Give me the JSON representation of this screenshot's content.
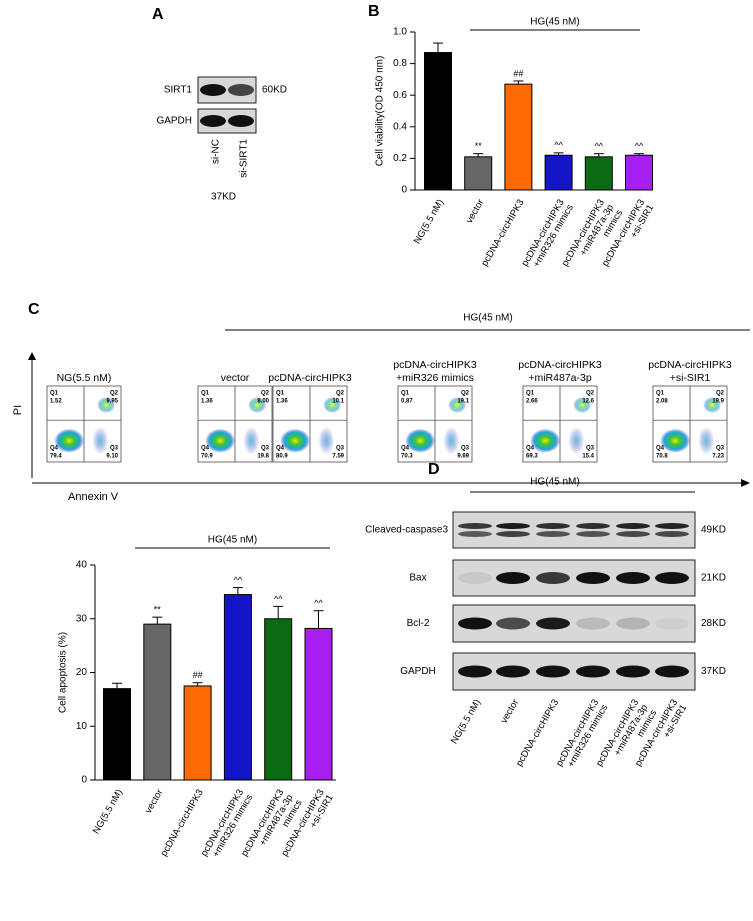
{
  "panel_labels": [
    "A",
    "B",
    "C",
    "D"
  ],
  "panel_a": {
    "rows": [
      {
        "label": "SIRT1",
        "size": "60KD"
      },
      {
        "label": "GAPDH"
      }
    ],
    "lanes": [
      "si-NC",
      "si-SIRT1"
    ],
    "note": "37KD"
  },
  "chart_data": [
    {
      "type": "bar",
      "group_label": "HG(45 nM)",
      "y_label": "Cell viability(OD 450 nm)",
      "categories": [
        [
          "NG(5.5 nM)"
        ],
        [
          "vector"
        ],
        [
          "pcDNA-circHIPK3"
        ],
        [
          "pcDNA-circHIPK3",
          "+miR326 mimics"
        ],
        [
          "pcDNA-circHIPK3",
          "+miR487a-3p",
          "mimics"
        ],
        [
          "pcDNA-circHIPK3",
          "+si-SIR1"
        ]
      ],
      "values": [
        0.87,
        0.21,
        0.67,
        0.22,
        0.21,
        0.22
      ],
      "errors": [
        0.06,
        0.02,
        0.02,
        0.015,
        0.02,
        0.01
      ],
      "bar_labels": [
        null,
        "**",
        "##",
        "^^",
        "^^",
        "^^"
      ],
      "colors": [
        "#000000",
        "#666666",
        "#ff6a00",
        "#1515c8",
        "#0b6b12",
        "#a61ef0"
      ],
      "ylim": [
        0,
        1
      ],
      "yticks": [
        0,
        0.2,
        0.4,
        0.6,
        0.8,
        {
          "value": 1,
          "label": "1.0"
        }
      ]
    },
    {
      "type": "bar",
      "group_label": "HG(45 nM)",
      "y_label": "Cell apoptosis (%)",
      "categories": [
        [
          "NG(5.5 nM)"
        ],
        [
          "vector"
        ],
        [
          "pcDNA-circHIPK3"
        ],
        [
          "pcDNA-circHIPK3",
          "+miR326 mimics"
        ],
        [
          "pcDNA-circHIPK3",
          "+miR487a-3p",
          "mimics"
        ],
        [
          "pcDNA-circHIPK3",
          "+si-SIR1"
        ]
      ],
      "values": [
        17,
        29,
        17.5,
        34.5,
        30,
        28.2
      ],
      "errors": [
        1,
        1.3,
        0.6,
        1.3,
        2.3,
        3.3
      ],
      "bar_labels": [
        null,
        "**",
        "##",
        "^^",
        "^^",
        "^^"
      ],
      "colors": [
        "#000000",
        "#666666",
        "#ff6a00",
        "#1515c8",
        "#0b6b12",
        "#a61ef0"
      ],
      "ylim": [
        0,
        40
      ],
      "yticks": [
        0,
        10,
        20,
        30,
        40
      ]
    }
  ],
  "flow": {
    "group": "HG(45 nM)",
    "y_label": "PI",
    "x_label": "Annexin  V",
    "quadrant_names": [
      "Q1",
      "Q2",
      "Q3",
      "Q4"
    ],
    "plots": [
      {
        "title": [
          "NG(5.5 nM)"
        ],
        "values": [
          "1.52",
          "9.95",
          "9.10",
          "79.4"
        ]
      },
      {
        "title": [
          "vector"
        ],
        "values": [
          "1.36",
          "8.00",
          "19.8",
          "70.9"
        ]
      },
      {
        "title": [
          "pcDNA-circHIPK3"
        ],
        "values": [
          "1.36",
          "10.1",
          "7.59",
          "80.9"
        ]
      },
      {
        "title": [
          "pcDNA-circHIPK3",
          "+miR326 mimics"
        ],
        "values": [
          "0.87",
          "19.1",
          "9.69",
          "70.3"
        ]
      },
      {
        "title": [
          "pcDNA-circHIPK3",
          "+miR487a-3p"
        ],
        "values": [
          "2.66",
          "12.6",
          "15.4",
          "69.3"
        ]
      },
      {
        "title": [
          "pcDNA-circHIPK3",
          "+si-SIR1"
        ],
        "values": [
          "2.08",
          "19.9",
          "7.23",
          "70.8"
        ]
      }
    ]
  },
  "panel_d": {
    "group": "HG(45 nM)",
    "rows": [
      {
        "label": "Cleaved-caspase3",
        "size": "49KD"
      },
      {
        "label": "Bax",
        "size": "21KD"
      },
      {
        "label": "Bcl-2",
        "size": "28KD"
      },
      {
        "label": "GAPDH",
        "size": "37KD"
      }
    ],
    "lanes": [
      [
        "NG(5.5 nM)"
      ],
      [
        "vector"
      ],
      [
        "pcDNA-circHIPK3"
      ],
      [
        "pcDNA-circHIPK3",
        "+miR326 mimics"
      ],
      [
        "pcDNA-circHIPK3",
        "+miR487a-3p",
        "mimics"
      ],
      [
        "pcDNA-circHIPK3",
        "+si-SIR1"
      ]
    ]
  }
}
